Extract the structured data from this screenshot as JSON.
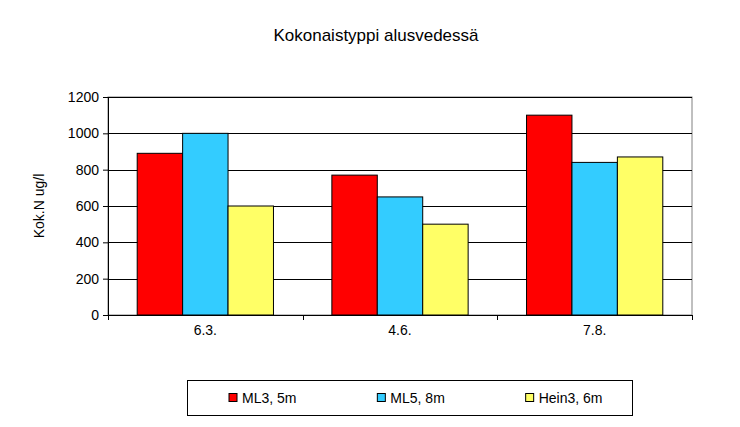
{
  "chart_data": {
    "type": "bar",
    "title": "Kokonaistyppi alusvedessä",
    "y_label": "Kok.N ug/l",
    "categories": [
      "6.3.",
      "4.6.",
      "7.8."
    ],
    "series": [
      {
        "name": "ML3, 5m",
        "color": "#ff0000",
        "values": [
          890,
          770,
          1100
        ]
      },
      {
        "name": "ML5, 8m",
        "color": "#33ccff",
        "values": [
          1000,
          650,
          840
        ]
      },
      {
        "name": "Hein3, 6m",
        "color": "#ffff66",
        "values": [
          600,
          500,
          870
        ]
      }
    ],
    "ylim": [
      0,
      1200
    ],
    "yticks": [
      0,
      200,
      400,
      600,
      800,
      1000,
      1200
    ],
    "grid": true,
    "legend": "bottom"
  }
}
